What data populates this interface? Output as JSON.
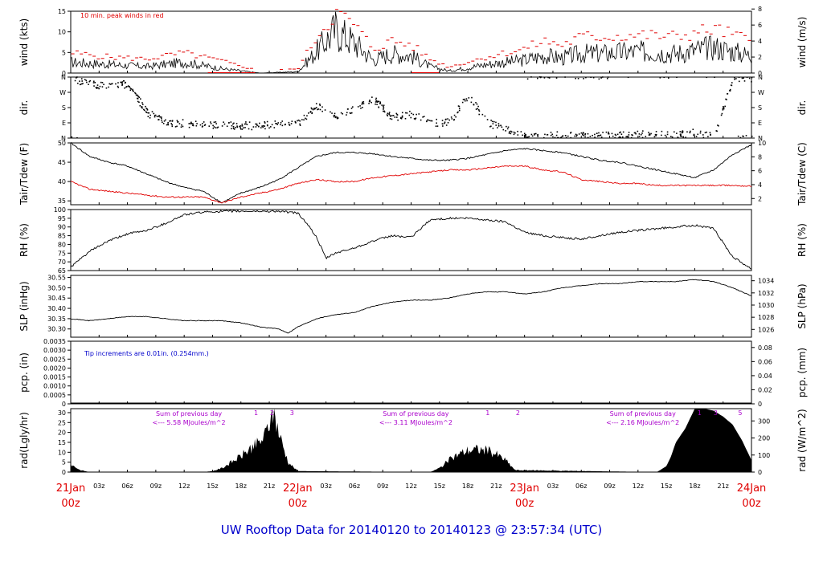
{
  "title": "UW Rooftop Data for 20140120  to  20140123 @ 23:57:34  (UTC)",
  "colors": {
    "primary": "#000000",
    "peak": "#e00000",
    "dewpoint": "#e00000",
    "note": "#0000cc",
    "sum": "#aa00cc",
    "date": "#e00000",
    "title": "#0000cc"
  },
  "chart_data": [
    {
      "type": "line",
      "name": "wind",
      "ylabel_left": "wind (kts)",
      "ylabel_right": "wind (m/s)",
      "ylim": [
        0,
        15
      ],
      "yticks": [
        0,
        5,
        10,
        15
      ],
      "right_ylim": [
        0,
        7.72
      ],
      "right_yticks": [
        0,
        2,
        4,
        6,
        8
      ],
      "annotation": "10 min. peak winds in red",
      "x": [
        0,
        4,
        8,
        12,
        16,
        20,
        24,
        26,
        28,
        30,
        32,
        34,
        36,
        38,
        40,
        44,
        48,
        50,
        52,
        54,
        56,
        60,
        64,
        68,
        72
      ],
      "series": [
        {
          "values": [
            2.5,
            2,
            1.5,
            2.5,
            1,
            0,
            0.3,
            5,
            10,
            7,
            3,
            4.5,
            4,
            1.5,
            0.5,
            2,
            3,
            4,
            3.5,
            4.5,
            4.5,
            5,
            4.5,
            6,
            4
          ]
        },
        {
          "values": [
            5,
            4,
            3.5,
            5,
            3,
            0.5,
            1,
            9,
            15,
            12,
            6,
            8,
            7,
            3.5,
            1.5,
            4,
            6,
            8,
            7,
            9,
            9,
            9.5,
            9,
            11,
            8
          ]
        }
      ]
    },
    {
      "type": "scatter",
      "name": "dir",
      "ylabel_left": "dir.",
      "ylabel_right": "dir.",
      "yticks_labels": [
        "N",
        "E",
        "S",
        "W",
        "N"
      ],
      "ylim": [
        0,
        360
      ],
      "x": [
        0,
        4,
        6,
        8,
        10,
        12,
        16,
        20,
        22,
        24,
        26,
        28,
        30,
        32,
        34,
        36,
        38,
        40,
        42,
        44,
        48,
        52,
        56,
        60,
        64,
        66,
        68,
        70,
        72
      ],
      "values": [
        345,
        300,
        320,
        150,
        90,
        85,
        75,
        70,
        80,
        85,
        190,
        120,
        180,
        230,
        120,
        140,
        90,
        90,
        250,
        90,
        10,
        15,
        10,
        20,
        15,
        30,
        5,
        355,
        350
      ]
    },
    {
      "type": "line",
      "name": "temperature",
      "ylabel_left": "Tair/Tdew (F)",
      "ylabel_right": "Tair/Tdew (C)",
      "ylim": [
        34,
        50
      ],
      "yticks": [
        35,
        40,
        45,
        50
      ],
      "right_ylim": [
        1.11,
        10
      ],
      "right_yticks": [
        2,
        4,
        6,
        8,
        10
      ],
      "x": [
        0,
        2,
        4,
        6,
        8,
        10,
        12,
        14,
        16,
        18,
        20,
        22,
        24,
        26,
        28,
        30,
        32,
        34,
        36,
        38,
        40,
        42,
        44,
        46,
        48,
        50,
        52,
        54,
        56,
        58,
        60,
        62,
        64,
        66,
        68,
        70,
        72
      ],
      "series": [
        {
          "values": [
            50,
            46.5,
            45,
            44,
            42,
            40,
            38.5,
            37.5,
            34.5,
            37,
            38.5,
            40.5,
            43.5,
            46.5,
            47.5,
            47.5,
            47.2,
            46.5,
            46,
            45.5,
            45.5,
            46,
            47,
            48,
            48.5,
            48,
            47.5,
            46.5,
            45.5,
            45,
            44,
            43,
            42,
            41,
            43,
            47,
            49.5
          ]
        },
        {
          "values": [
            40,
            38,
            37.5,
            37,
            36.5,
            36,
            36,
            36,
            34.5,
            36,
            37,
            38,
            39.5,
            40.5,
            40,
            40,
            41,
            41.5,
            42,
            42.5,
            43,
            43,
            43.5,
            44,
            44,
            43,
            42.5,
            40.5,
            40,
            39.5,
            39.5,
            39,
            39,
            39,
            39,
            39,
            38.8
          ]
        }
      ]
    },
    {
      "type": "line",
      "name": "rh",
      "ylabel_left": "RH (%)",
      "ylabel_right": "RH (%)",
      "ylim": [
        65,
        100
      ],
      "yticks": [
        65,
        70,
        75,
        80,
        85,
        90,
        95,
        100
      ],
      "x": [
        0,
        2,
        4,
        6,
        8,
        10,
        12,
        14,
        16,
        18,
        20,
        22,
        24,
        25,
        26,
        27,
        28,
        30,
        32,
        34,
        36,
        38,
        40,
        42,
        44,
        46,
        48,
        50,
        52,
        54,
        56,
        58,
        60,
        62,
        64,
        66,
        68,
        70,
        72
      ],
      "values": [
        67,
        76,
        82,
        86,
        88,
        92,
        97,
        98.5,
        99,
        99,
        99,
        99,
        98,
        92,
        84,
        72,
        75,
        78,
        82,
        85,
        84,
        94,
        95,
        95,
        94,
        93,
        87,
        85,
        84,
        83,
        85,
        87,
        88,
        89,
        90,
        91,
        89,
        73,
        66
      ]
    },
    {
      "type": "line",
      "name": "slp",
      "ylabel_left": "SLP (inHg)",
      "ylabel_right": "SLP (hPa)",
      "ylim": [
        30.26,
        30.56
      ],
      "yticks": [
        30.3,
        30.35,
        30.4,
        30.45,
        30.5,
        30.55
      ],
      "yticks_labels": [
        "30.30",
        "30.35",
        "30.40",
        "30.45",
        "30.50",
        "30.55"
      ],
      "right_yticks": [
        1026,
        1028,
        1030,
        1032,
        1034
      ],
      "x": [
        0,
        2,
        4,
        6,
        8,
        10,
        12,
        14,
        16,
        18,
        20,
        22,
        23,
        24,
        26,
        28,
        30,
        32,
        34,
        36,
        38,
        40,
        42,
        44,
        46,
        48,
        50,
        52,
        54,
        56,
        58,
        60,
        62,
        64,
        66,
        68,
        70,
        72
      ],
      "values": [
        30.35,
        30.34,
        30.35,
        30.36,
        30.36,
        30.35,
        30.34,
        30.34,
        30.34,
        30.33,
        30.31,
        30.3,
        30.28,
        30.31,
        30.35,
        30.37,
        30.38,
        30.41,
        30.43,
        30.44,
        30.44,
        30.45,
        30.47,
        30.48,
        30.48,
        30.47,
        30.48,
        30.5,
        30.51,
        30.52,
        30.52,
        30.53,
        30.53,
        30.53,
        30.54,
        30.53,
        30.5,
        30.46
      ]
    },
    {
      "type": "bar",
      "name": "precip",
      "ylabel_left": "pcp. (in)",
      "ylabel_right": "pcp. (mm)",
      "ylim": [
        0,
        0.0035
      ],
      "yticks": [
        0,
        0.0005,
        0.001,
        0.0015,
        0.002,
        0.0025,
        0.003,
        0.0035
      ],
      "yticks_labels": [
        "0",
        "0.0005",
        "0.0010",
        "0.0015",
        "0.0020",
        "0.0025",
        "0.0030",
        "0.0035"
      ],
      "right_yticks": [
        0,
        0.02,
        0.04,
        0.06,
        0.08
      ],
      "right_yticks_labels": [
        "0",
        "0.02",
        "0.04",
        "0.06",
        "0.08"
      ],
      "annotation": "Tip increments are 0.01in. (0.254mm.)",
      "values": []
    },
    {
      "type": "area",
      "name": "radiation",
      "ylabel_left": "rad(Lgly/hr)",
      "ylabel_right": "rad (W/m^2)",
      "ylim": [
        0,
        32
      ],
      "yticks": [
        0,
        5,
        10,
        15,
        20,
        25,
        30
      ],
      "right_yticks": [
        0,
        100,
        200,
        300
      ],
      "x": [
        0,
        1,
        2,
        14,
        15,
        16,
        17,
        18,
        19,
        20,
        20.5,
        21,
        21.5,
        22,
        23,
        24,
        38,
        39,
        40,
        41,
        42,
        43,
        44,
        45,
        46,
        47,
        62,
        63,
        63.5,
        64,
        65,
        66,
        67,
        68,
        69,
        70,
        71,
        72
      ],
      "values": [
        4,
        1,
        0,
        0,
        0.5,
        2,
        5,
        8,
        12,
        15,
        18,
        25,
        31,
        20,
        5,
        0.5,
        0,
        2,
        6,
        9,
        11,
        11.5,
        11,
        9,
        6,
        1,
        0,
        3,
        8,
        15,
        22,
        32,
        32,
        31,
        28,
        24,
        16,
        6
      ],
      "labels": [
        {
          "text": "Sum of previous day",
          "text2": "<--- 5.58 MJoules/m^2",
          "x": 12.5
        },
        {
          "text": "Sum of previous day",
          "text2": "<--- 3.11 MJoules/m^2",
          "x": 36.5
        },
        {
          "text": "Sum of previous day",
          "text2": "<--- 2.16 MJoules/m^2",
          "x": 60.5
        }
      ],
      "markers": [
        {
          "text": "1",
          "x": 19.6
        },
        {
          "text": "2",
          "x": 21.3
        },
        {
          "text": "3",
          "x": 23.4
        },
        {
          "text": "1",
          "x": 44.1
        },
        {
          "text": "2",
          "x": 47.3
        },
        {
          "text": "1",
          "x": 66.5
        },
        {
          "text": "3",
          "x": 68.2
        },
        {
          "text": "5",
          "x": 70.8
        }
      ]
    }
  ],
  "x_axis": {
    "hour_labels": [
      "03z",
      "06z",
      "09z",
      "12z",
      "15z",
      "18z",
      "21z",
      "03z",
      "06z",
      "09z",
      "12z",
      "15z",
      "18z",
      "21z",
      "03z",
      "06z",
      "09z",
      "12z",
      "15z",
      "18z",
      "21z"
    ],
    "hour_positions": [
      3,
      6,
      9,
      12,
      15,
      18,
      21,
      27,
      30,
      33,
      36,
      39,
      42,
      45,
      51,
      54,
      57,
      60,
      63,
      66,
      69
    ],
    "date_labels": [
      "21Jan",
      "22Jan",
      "23Jan",
      "24Jan"
    ],
    "date_sub": "00z",
    "date_positions": [
      0,
      24,
      48,
      72
    ],
    "range_hours": [
      0,
      72
    ]
  }
}
